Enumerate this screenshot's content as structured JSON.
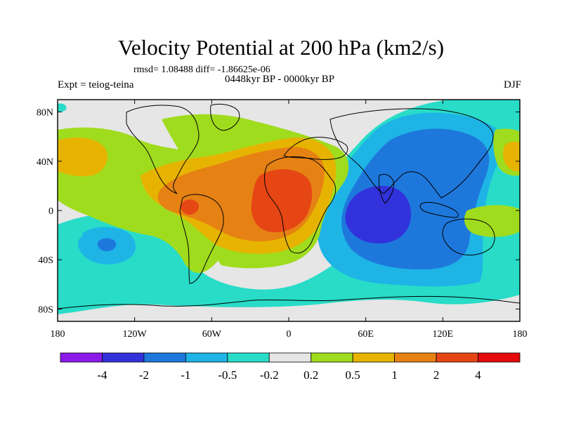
{
  "chart_data": {
    "type": "heatmap",
    "title": "Velocity Potential at 200 hPa (km2/s)",
    "stats_line": "rmsd= 1.08488 diff= -1.86625e-06",
    "period": "0448kyr BP - 0000kyr BP",
    "experiment": "Expt = teiog-teina",
    "season": "DJF",
    "projection": "cylindrical equidistant, global",
    "xlim": [
      -180,
      180
    ],
    "ylim": [
      -90,
      90
    ],
    "x_ticks": [
      {
        "value": -180,
        "label": "180"
      },
      {
        "value": -120,
        "label": "120W"
      },
      {
        "value": -60,
        "label": "60W"
      },
      {
        "value": 0,
        "label": "0"
      },
      {
        "value": 60,
        "label": "60E"
      },
      {
        "value": 120,
        "label": "120E"
      },
      {
        "value": 180,
        "label": "180"
      }
    ],
    "y_ticks": [
      {
        "value": 80,
        "label": "80N"
      },
      {
        "value": 40,
        "label": "40N"
      },
      {
        "value": 0,
        "label": "0"
      },
      {
        "value": -40,
        "label": "40S"
      },
      {
        "value": -80,
        "label": "80S"
      }
    ],
    "colorbar": {
      "levels": [
        "-4",
        "-2",
        "-1",
        "-0.5",
        "-0.2",
        "0.2",
        "0.5",
        "1",
        "2",
        "4"
      ],
      "colors": [
        "#8c1aeb",
        "#3232dc",
        "#1e78dc",
        "#1eb4e6",
        "#28dcc8",
        "#e6e6e6",
        "#a0dc1e",
        "#e6b400",
        "#e68214",
        "#e64614",
        "#e60a0a"
      ]
    },
    "field_features": [
      {
        "name": "Indian Ocean minimum",
        "lon": 63,
        "lat": 0,
        "bin": 1
      },
      {
        "name": "Asia-Indian Ocean low",
        "lon": 70,
        "lat": 10,
        "bin": 2
      },
      {
        "name": "Western Pacific low",
        "lon": 110,
        "lat": 20,
        "bin": 3
      },
      {
        "name": "Tropical Atlantic-Africa maximum",
        "lon": -18,
        "lat": 8,
        "bin": 9
      },
      {
        "name": "South America maximum",
        "lon": -78,
        "lat": 0,
        "bin": 9
      },
      {
        "name": "Atlantic high",
        "lon": -40,
        "lat": 15,
        "bin": 8
      },
      {
        "name": "Northeast Pacific high",
        "lon": -155,
        "lat": 35,
        "bin": 7
      },
      {
        "name": "South Pacific low",
        "lon": -140,
        "lat": -22,
        "bin": 3
      }
    ]
  }
}
